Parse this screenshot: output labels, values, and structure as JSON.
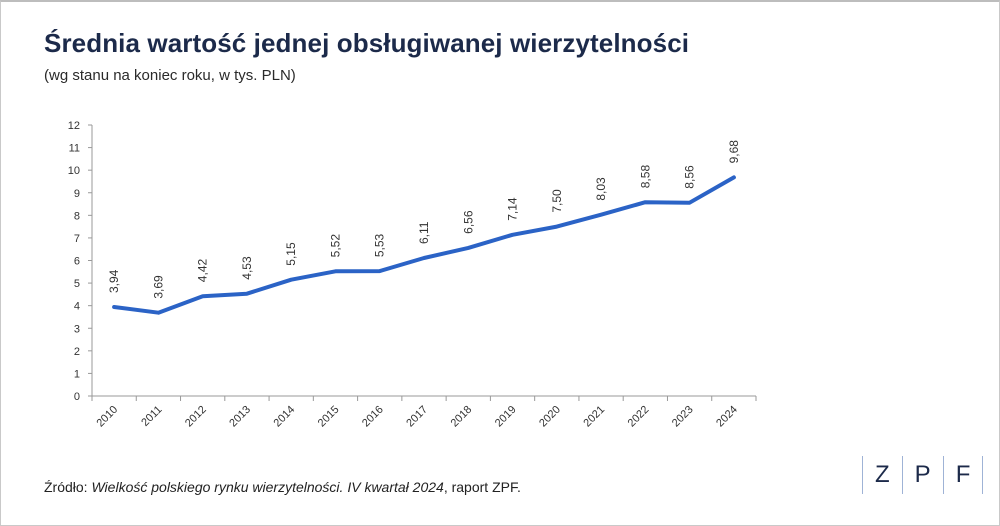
{
  "title": "Średnia wartość jednej obsługiwanej wierzytelności",
  "subtitle": "(wg stanu na koniec roku, w tys. PLN)",
  "source": {
    "prefix": "Źródło: ",
    "italic": "Wielkość polskiego rynku wierzytelności. IV kwartał 2024",
    "suffix": ", raport ZPF."
  },
  "logo": {
    "letters": [
      "Z",
      "P",
      "F"
    ]
  },
  "colors": {
    "line": "#2b63c6",
    "title": "#1c2a4a",
    "axis": "#999999"
  },
  "chart_data": {
    "type": "line",
    "x": [
      "2010",
      "2011",
      "2012",
      "2013",
      "2014",
      "2015",
      "2016",
      "2017",
      "2018",
      "2019",
      "2020",
      "2021",
      "2022",
      "2023",
      "2024"
    ],
    "series": [
      {
        "values": [
          3.94,
          3.69,
          4.42,
          4.53,
          5.15,
          5.52,
          5.53,
          6.11,
          6.56,
          7.14,
          7.5,
          8.03,
          8.58,
          8.56,
          9.68
        ],
        "labels": [
          "3,94",
          "3,69",
          "4,42",
          "4,53",
          "5,15",
          "5,52",
          "5,53",
          "6,11",
          "6,56",
          "7,14",
          "7,50",
          "8,03",
          "8,58",
          "8,56",
          "9,68"
        ]
      }
    ],
    "ylim": [
      0,
      12
    ],
    "yticks": [
      0,
      1,
      2,
      3,
      4,
      5,
      6,
      7,
      8,
      9,
      10,
      11,
      12
    ],
    "grid": false,
    "legend": "none",
    "xlabel": "",
    "ylabel": ""
  }
}
